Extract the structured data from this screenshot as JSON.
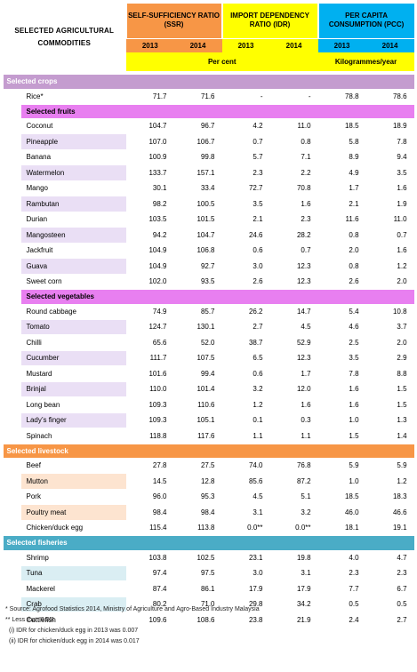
{
  "header": {
    "title": "SELECTED AGRICULTURAL COMMODITIES",
    "ssr_label": "SELF-SUFFICIENCY RATIO (SSR)",
    "idr_label": "IMPORT DEPENDENCY RATIO (IDR)",
    "pcc_label": "PER CAPITA CONSUMPTION (PCC)",
    "years": [
      "2013",
      "2014"
    ],
    "unit_percent": "Per cent",
    "unit_pcc": "Kilogrammes/year"
  },
  "sections": {
    "crops": "Selected crops",
    "fruits": "Selected fruits",
    "vegetables": "Selected vegetables",
    "livestock": "Selected livestock",
    "fisheries": "Selected fisheries"
  },
  "rice": {
    "name": "Rice*",
    "ssr2013": "71.7",
    "ssr2014": "71.6",
    "idr2013": "-",
    "idr2014": "-",
    "pcc2013": "78.8",
    "pcc2014": "78.6"
  },
  "fruits": [
    {
      "name": "Coconut",
      "ssr2013": "104.7",
      "ssr2014": "96.7",
      "idr2013": "4.2",
      "idr2014": "11.0",
      "pcc2013": "18.5",
      "pcc2014": "18.9"
    },
    {
      "name": "Pineapple",
      "ssr2013": "107.0",
      "ssr2014": "106.7",
      "idr2013": "0.7",
      "idr2014": "0.8",
      "pcc2013": "5.8",
      "pcc2014": "7.8"
    },
    {
      "name": "Banana",
      "ssr2013": "100.9",
      "ssr2014": "99.8",
      "idr2013": "5.7",
      "idr2014": "7.1",
      "pcc2013": "8.9",
      "pcc2014": "9.4"
    },
    {
      "name": "Watermelon",
      "ssr2013": "133.7",
      "ssr2014": "157.1",
      "idr2013": "2.3",
      "idr2014": "2.2",
      "pcc2013": "4.9",
      "pcc2014": "3.5"
    },
    {
      "name": "Mango",
      "ssr2013": "30.1",
      "ssr2014": "33.4",
      "idr2013": "72.7",
      "idr2014": "70.8",
      "pcc2013": "1.7",
      "pcc2014": "1.6"
    },
    {
      "name": "Rambutan",
      "ssr2013": "98.2",
      "ssr2014": "100.5",
      "idr2013": "3.5",
      "idr2014": "1.6",
      "pcc2013": "2.1",
      "pcc2014": "1.9"
    },
    {
      "name": "Durian",
      "ssr2013": "103.5",
      "ssr2014": "101.5",
      "idr2013": "2.1",
      "idr2014": "2.3",
      "pcc2013": "11.6",
      "pcc2014": "11.0"
    },
    {
      "name": "Mangosteen",
      "ssr2013": "94.2",
      "ssr2014": "104.7",
      "idr2013": "24.6",
      "idr2014": "28.2",
      "pcc2013": "0.8",
      "pcc2014": "0.7"
    },
    {
      "name": "Jackfruit",
      "ssr2013": "104.9",
      "ssr2014": "106.8",
      "idr2013": "0.6",
      "idr2014": "0.7",
      "pcc2013": "2.0",
      "pcc2014": "1.6"
    },
    {
      "name": "Guava",
      "ssr2013": "104.9",
      "ssr2014": "92.7",
      "idr2013": "3.0",
      "idr2014": "12.3",
      "pcc2013": "0.8",
      "pcc2014": "1.2"
    },
    {
      "name": "Sweet corn",
      "ssr2013": "102.0",
      "ssr2014": "93.5",
      "idr2013": "2.6",
      "idr2014": "12.3",
      "pcc2013": "2.6",
      "pcc2014": "2.0"
    }
  ],
  "vegetables": [
    {
      "name": "Round cabbage",
      "ssr2013": "74.9",
      "ssr2014": "85.7",
      "idr2013": "26.2",
      "idr2014": "14.7",
      "pcc2013": "5.4",
      "pcc2014": "10.8"
    },
    {
      "name": "Tomato",
      "ssr2013": "124.7",
      "ssr2014": "130.1",
      "idr2013": "2.7",
      "idr2014": "4.5",
      "pcc2013": "4.6",
      "pcc2014": "3.7"
    },
    {
      "name": "Chilli",
      "ssr2013": "65.6",
      "ssr2014": "52.0",
      "idr2013": "38.7",
      "idr2014": "52.9",
      "pcc2013": "2.5",
      "pcc2014": "2.0"
    },
    {
      "name": "Cucumber",
      "ssr2013": "111.7",
      "ssr2014": "107.5",
      "idr2013": "6.5",
      "idr2014": "12.3",
      "pcc2013": "3.5",
      "pcc2014": "2.9"
    },
    {
      "name": "Mustard",
      "ssr2013": "101.6",
      "ssr2014": "99.4",
      "idr2013": "0.6",
      "idr2014": "1.7",
      "pcc2013": "7.8",
      "pcc2014": "8.8"
    },
    {
      "name": "Brinjal",
      "ssr2013": "110.0",
      "ssr2014": "101.4",
      "idr2013": "3.2",
      "idr2014": "12.0",
      "pcc2013": "1.6",
      "pcc2014": "1.5"
    },
    {
      "name": "Long bean",
      "ssr2013": "109.3",
      "ssr2014": "110.6",
      "idr2013": "1.2",
      "idr2014": "1.6",
      "pcc2013": "1.6",
      "pcc2014": "1.5"
    },
    {
      "name": "Lady’s finger",
      "ssr2013": "109.3",
      "ssr2014": "105.1",
      "idr2013": "0.1",
      "idr2014": "0.3",
      "pcc2013": "1.0",
      "pcc2014": "1.3"
    },
    {
      "name": "Spinach",
      "ssr2013": "118.8",
      "ssr2014": "117.6",
      "idr2013": "1.1",
      "idr2014": "1.1",
      "pcc2013": "1.5",
      "pcc2014": "1.4"
    }
  ],
  "livestock": [
    {
      "name": "Beef",
      "ssr2013": "27.8",
      "ssr2014": "27.5",
      "idr2013": "74.0",
      "idr2014": "76.8",
      "pcc2013": "5.9",
      "pcc2014": "5.9"
    },
    {
      "name": "Mutton",
      "ssr2013": "14.5",
      "ssr2014": "12.8",
      "idr2013": "85.6",
      "idr2014": "87.2",
      "pcc2013": "1.0",
      "pcc2014": "1.2"
    },
    {
      "name": "Pork",
      "ssr2013": "96.0",
      "ssr2014": "95.3",
      "idr2013": "4.5",
      "idr2014": "5.1",
      "pcc2013": "18.5",
      "pcc2014": "18.3"
    },
    {
      "name": "Poultry meat",
      "ssr2013": "98.4",
      "ssr2014": "98.4",
      "idr2013": "3.1",
      "idr2014": "3.2",
      "pcc2013": "46.0",
      "pcc2014": "46.6"
    },
    {
      "name": "Chicken/duck egg",
      "ssr2013": "115.4",
      "ssr2014": "113.8",
      "idr2013": "0.0**",
      "idr2014": "0.0**",
      "pcc2013": "18.1",
      "pcc2014": "19.1"
    }
  ],
  "fisheries": [
    {
      "name": "Shrimp",
      "ssr2013": "103.8",
      "ssr2014": "102.5",
      "idr2013": "23.1",
      "idr2014": "19.8",
      "pcc2013": "4.0",
      "pcc2014": "4.7"
    },
    {
      "name": "Tuna",
      "ssr2013": "97.4",
      "ssr2014": "97.5",
      "idr2013": "3.0",
      "idr2014": "3.1",
      "pcc2013": "2.3",
      "pcc2014": "2.3"
    },
    {
      "name": "Mackerel",
      "ssr2013": "87.4",
      "ssr2014": "86.1",
      "idr2013": "17.9",
      "idr2014": "17.9",
      "pcc2013": "7.7",
      "pcc2014": "6.7"
    },
    {
      "name": "Crab",
      "ssr2013": "80.2",
      "ssr2014": "71.0",
      "idr2013": "29.8",
      "idr2014": "34.2",
      "pcc2013": "0.5",
      "pcc2014": "0.5"
    },
    {
      "name": "Cuttlefish",
      "ssr2013": "109.6",
      "ssr2014": "108.6",
      "idr2013": "23.8",
      "idr2014": "21.9",
      "pcc2013": "2.4",
      "pcc2014": "2.7"
    }
  ],
  "notes": {
    "source": "* Source: Agrofood Statistics 2014, Ministry of Agriculture and Agro-Based Industry Malaysia",
    "less_than": "** Less than 0.05:",
    "note1": "(i)  IDR for chicken/duck egg in 2013 was 0.007",
    "note2": "(ii) IDR for chicken/duck egg in 2014 was 0.017"
  },
  "colors": {
    "ssr": "#f79646",
    "idr": "#ffff00",
    "pcc": "#00b0f0",
    "crops_header": "#c49ccf",
    "fruit_veg_header": "#e87ff0",
    "livestock_header": "#f79646",
    "fisheries_header": "#4aacc6"
  }
}
